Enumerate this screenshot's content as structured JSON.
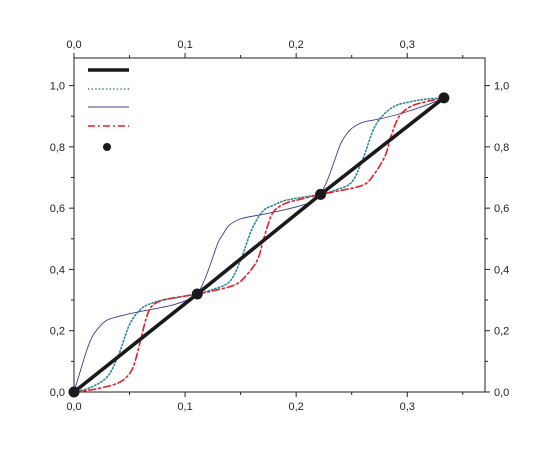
{
  "chart_data": {
    "type": "line",
    "title": "",
    "xlabel": "",
    "ylabel": "",
    "xlim": [
      0.0,
      0.37
    ],
    "ylim": [
      0.0,
      1.09
    ],
    "decimal_separator": ",",
    "x_ticks": [
      "0,0",
      "0,1",
      "0,2",
      "0,3"
    ],
    "x_tick_values": [
      0.0,
      0.1,
      0.2,
      0.3
    ],
    "y_ticks": [
      "0,0",
      "0,2",
      "0,4",
      "0,6",
      "0,8",
      "1,0"
    ],
    "y_tick_values": [
      0.0,
      0.2,
      0.4,
      0.6,
      0.8,
      1.0
    ],
    "grid": false,
    "mirror_axes": true,
    "legend_position": "top-left",
    "series": [
      {
        "style": "solid-thick",
        "color": "#1a1a1a",
        "x": [
          0.0,
          0.111,
          0.222,
          0.333
        ],
        "y": [
          0.0,
          0.32,
          0.645,
          0.96
        ]
      },
      {
        "style": "dotted",
        "color": "#2a8a96",
        "x": [
          0.0,
          0.015,
          0.03,
          0.04,
          0.05,
          0.06,
          0.07,
          0.08,
          0.095,
          0.111,
          0.125,
          0.14,
          0.15,
          0.16,
          0.17,
          0.18,
          0.19,
          0.205,
          0.222,
          0.236,
          0.25,
          0.26,
          0.27,
          0.28,
          0.29,
          0.3,
          0.315,
          0.333
        ],
        "y": [
          0.0,
          0.015,
          0.05,
          0.12,
          0.22,
          0.27,
          0.29,
          0.3,
          0.31,
          0.32,
          0.335,
          0.36,
          0.43,
          0.53,
          0.59,
          0.61,
          0.625,
          0.635,
          0.645,
          0.66,
          0.685,
          0.76,
          0.86,
          0.91,
          0.935,
          0.945,
          0.955,
          0.96
        ]
      },
      {
        "style": "thin",
        "color": "#3d3b8e",
        "x": [
          0.0,
          0.005,
          0.01,
          0.015,
          0.02,
          0.03,
          0.05,
          0.07,
          0.09,
          0.105,
          0.111,
          0.118,
          0.125,
          0.13,
          0.135,
          0.14,
          0.15,
          0.17,
          0.19,
          0.21,
          0.22,
          0.222,
          0.228,
          0.235,
          0.24,
          0.245,
          0.25,
          0.26,
          0.28,
          0.3,
          0.32,
          0.333
        ],
        "y": [
          0.0,
          0.06,
          0.12,
          0.17,
          0.2,
          0.235,
          0.255,
          0.27,
          0.285,
          0.305,
          0.32,
          0.37,
          0.44,
          0.49,
          0.52,
          0.545,
          0.565,
          0.58,
          0.595,
          0.615,
          0.635,
          0.645,
          0.69,
          0.76,
          0.81,
          0.84,
          0.86,
          0.88,
          0.895,
          0.915,
          0.94,
          0.96
        ]
      },
      {
        "style": "dash-dot",
        "color": "#e0202a",
        "x": [
          0.0,
          0.02,
          0.04,
          0.05,
          0.055,
          0.06,
          0.065,
          0.07,
          0.08,
          0.095,
          0.111,
          0.125,
          0.145,
          0.155,
          0.165,
          0.17,
          0.175,
          0.18,
          0.19,
          0.205,
          0.222,
          0.236,
          0.26,
          0.27,
          0.28,
          0.285,
          0.29,
          0.295,
          0.305,
          0.32,
          0.333
        ],
        "y": [
          0.0,
          0.01,
          0.03,
          0.06,
          0.1,
          0.17,
          0.24,
          0.28,
          0.3,
          0.31,
          0.32,
          0.33,
          0.35,
          0.38,
          0.43,
          0.49,
          0.55,
          0.59,
          0.615,
          0.63,
          0.645,
          0.655,
          0.675,
          0.71,
          0.77,
          0.83,
          0.88,
          0.91,
          0.935,
          0.95,
          0.96
        ]
      },
      {
        "style": "markers",
        "color": "#1a1a1a",
        "x": [
          0.0,
          0.111,
          0.222,
          0.333
        ],
        "y": [
          0.0,
          0.32,
          0.645,
          0.96
        ]
      }
    ]
  }
}
